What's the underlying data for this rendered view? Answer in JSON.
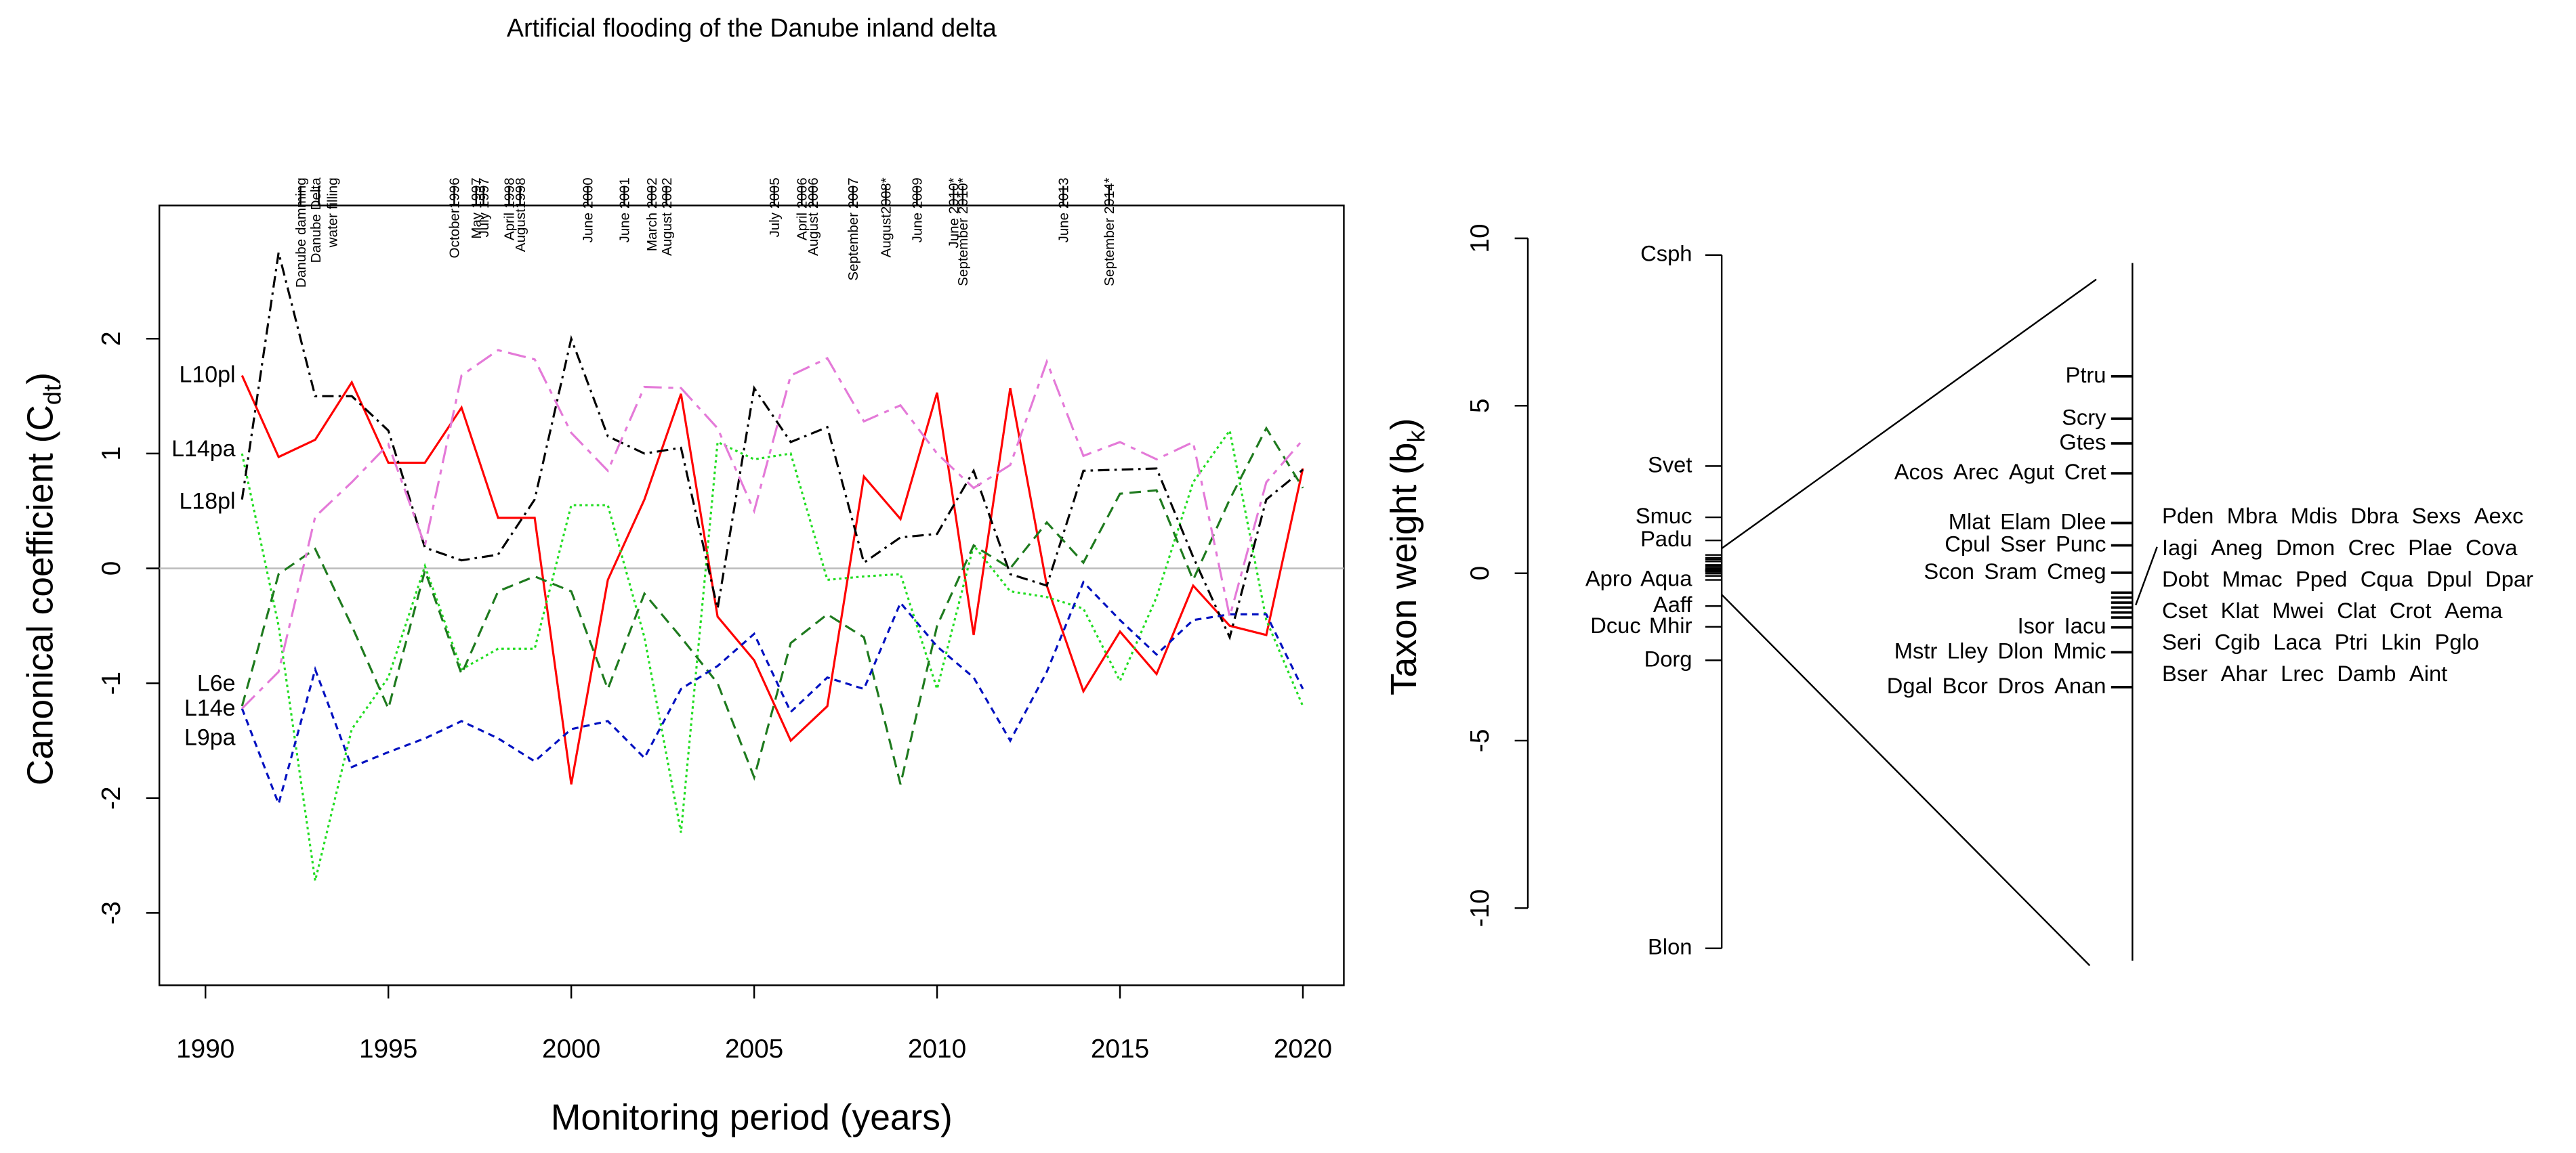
{
  "chart_data": [
    {
      "type": "line",
      "title": "Artificial flooding of the Danube inland delta",
      "x_label": "Monitoring period (years)",
      "y_label": [
        "Canonical coefficient (C",
        "dt",
        ")"
      ],
      "xlim": [
        1988.74,
        2021.12
      ],
      "xticks": [
        1990,
        1995,
        2000,
        2005,
        2010,
        2015,
        2020
      ],
      "ylim": [
        -3.63,
        3.16
      ],
      "yticks": [
        -3,
        -2,
        -1,
        0,
        1,
        2
      ],
      "zero_line": true,
      "events": [
        {
          "label": "Danube damming",
          "x": 1992.6
        },
        {
          "label": [
            "Danube Delta",
            "water filling"
          ],
          "x": 1993.1
        },
        {
          "label": "October1996",
          "x": 1996.8
        },
        {
          "label": "May 1997",
          "x": 1997.4
        },
        {
          "label": "July 1997",
          "x": 1997.6
        },
        {
          "label": "April 1998",
          "x": 1998.3
        },
        {
          "label": "August1998",
          "x": 1998.6
        },
        {
          "label": "June 2000",
          "x": 2000.45
        },
        {
          "label": "June 2001",
          "x": 2001.45
        },
        {
          "label": "March 2002",
          "x": 2002.2
        },
        {
          "label": "August 2002",
          "x": 2002.6
        },
        {
          "label": "July 2005",
          "x": 2005.55
        },
        {
          "label": "April 2006",
          "x": 2006.3
        },
        {
          "label": "August 2006",
          "x": 2006.6
        },
        {
          "label": "September 2007",
          "x": 2007.7
        },
        {
          "label": "August2008*",
          "x": 2008.6
        },
        {
          "label": "June 2009",
          "x": 2009.45
        },
        {
          "label": "June 2010*",
          "x": 2010.45
        },
        {
          "label": "September 2010*",
          "x": 2010.7
        },
        {
          "label": "June 2013",
          "x": 2013.45
        },
        {
          "label": "September 2014*",
          "x": 2014.7
        }
      ],
      "x": [
        1991,
        1992,
        1993,
        1994,
        1995,
        1996,
        1997,
        1998,
        1999,
        2000,
        2001,
        2002,
        2003,
        2004,
        2005,
        2006,
        2007,
        2008,
        2009,
        2010,
        2011,
        2012,
        2013,
        2014,
        2015,
        2016,
        2017,
        2018,
        2019,
        2020
      ],
      "series": [
        {
          "name": "L10pl",
          "color": "#ff0000",
          "label_color": "#e8141c",
          "dash": "solid",
          "values": [
            1.68,
            0.97,
            1.12,
            1.62,
            0.92,
            0.92,
            1.4,
            0.44,
            0.44,
            -1.88,
            -0.1,
            0.6,
            1.52,
            -0.42,
            -0.8,
            -1.5,
            -1.2,
            0.8,
            0.43,
            1.53,
            -0.58,
            1.57,
            -0.15,
            -1.07,
            -0.55,
            -0.92,
            -0.15,
            -0.5,
            -0.58,
            0.87
          ]
        },
        {
          "name": "L14pa",
          "color": "#22dd22",
          "label_color": "#e8b000",
          "dash": "dotted",
          "values": [
            1.0,
            -0.5,
            -2.72,
            -1.4,
            -0.95,
            0.02,
            -0.88,
            -0.7,
            -0.7,
            0.55,
            0.55,
            -0.6,
            -2.3,
            1.1,
            0.95,
            1.0,
            -0.1,
            -0.07,
            -0.05,
            -1.05,
            0.2,
            -0.2,
            -0.25,
            -0.35,
            -0.98,
            -0.25,
            0.75,
            1.2,
            -0.45,
            -1.2
          ]
        },
        {
          "name": "L18pl",
          "color": "#000000",
          "label_color": "#000000",
          "dash": "dashdot",
          "values": [
            0.6,
            2.75,
            1.5,
            1.5,
            1.2,
            0.18,
            0.07,
            0.12,
            0.6,
            2.0,
            1.15,
            1.0,
            1.05,
            -0.35,
            1.57,
            1.1,
            1.23,
            0.05,
            0.27,
            0.3,
            0.85,
            -0.05,
            -0.15,
            0.85,
            0.86,
            0.87,
            0.1,
            -0.6,
            0.6,
            0.86
          ]
        },
        {
          "name": "L6e",
          "color": "#1e7a1e",
          "label_color": "#1a7a1a",
          "dash": "dashed",
          "values": [
            -1.2,
            -0.05,
            0.17,
            -0.5,
            -1.22,
            -0.02,
            -0.92,
            -0.2,
            -0.07,
            -0.2,
            -1.05,
            -0.22,
            -0.6,
            -1.0,
            -1.82,
            -0.65,
            -0.4,
            -0.6,
            -1.88,
            -0.5,
            0.2,
            0.0,
            0.4,
            0.05,
            0.65,
            0.68,
            -0.1,
            0.6,
            1.22,
            0.7
          ]
        },
        {
          "name": "L14e",
          "color": "#0010c0",
          "label_color": "#1f6fb0",
          "dash": "shortdash",
          "values": [
            -1.22,
            -2.05,
            -0.88,
            -1.73,
            -1.6,
            -1.48,
            -1.33,
            -1.48,
            -1.68,
            -1.4,
            -1.33,
            -1.65,
            -1.05,
            -0.85,
            -0.57,
            -1.25,
            -0.95,
            -1.05,
            -0.3,
            -0.68,
            -0.95,
            -1.5,
            -0.9,
            -0.12,
            -0.45,
            -0.75,
            -0.45,
            -0.4,
            -0.4,
            -1.05
          ]
        },
        {
          "name": "L9pa",
          "color": "#e47ad8",
          "label_color": "#e066c8",
          "dash": "longdash",
          "values": [
            -1.22,
            -0.9,
            0.45,
            0.75,
            1.08,
            0.2,
            1.68,
            1.9,
            1.82,
            1.18,
            0.85,
            1.58,
            1.57,
            1.22,
            0.5,
            1.68,
            1.83,
            1.28,
            1.42,
            1.0,
            0.7,
            0.9,
            1.8,
            0.98,
            1.1,
            0.95,
            1.1,
            -0.42,
            0.75,
            1.12
          ]
        }
      ]
    },
    {
      "type": "strip",
      "y_label": [
        "Taxon weight (b",
        "k",
        ")"
      ],
      "ylim": [
        -10,
        10
      ],
      "yticks": [
        -10,
        -5,
        0,
        5,
        10
      ],
      "taxa": [
        {
          "labels": [
            "Csph"
          ],
          "value": 9.5
        },
        {
          "labels": [
            "Svet"
          ],
          "value": 3.2
        },
        {
          "labels": [
            "Smuc"
          ],
          "value": 1.67
        },
        {
          "labels": [
            "Padu"
          ],
          "value": 0.98
        },
        {
          "labels": [
            "Apro",
            "Aqua"
          ],
          "value": -0.2
        },
        {
          "labels": [
            "Aaff"
          ],
          "value": -0.98
        },
        {
          "labels": [
            "Dcuc",
            "Mhir"
          ],
          "value": -1.6
        },
        {
          "labels": [
            "Dorg"
          ],
          "value": -2.6
        },
        {
          "labels": [
            "Blon"
          ],
          "value": -11.2
        }
      ],
      "zoom": {
        "lim": [
          -0.64,
          0.74
        ],
        "groups": [
          {
            "labels": [
              "Ptru"
            ],
            "value": 0.545,
            "side": "left"
          },
          {
            "labels": [
              "Scry"
            ],
            "value": 0.46,
            "side": "left"
          },
          {
            "labels": [
              "Gtes"
            ],
            "value": 0.41,
            "side": "left"
          },
          {
            "labels": [
              "Acos",
              "Arec",
              "Agut",
              "Cret"
            ],
            "value": 0.35,
            "side": "left"
          },
          {
            "labels": [
              "Mlat",
              "Elam",
              "Dlee"
            ],
            "value": 0.25,
            "side": "left"
          },
          {
            "labels": [
              "Cpul",
              "Sser",
              "Punc"
            ],
            "value": 0.205,
            "side": "left"
          },
          {
            "labels": [
              "Scon",
              "Sram",
              "Cmeg"
            ],
            "value": 0.15,
            "side": "left"
          },
          {
            "labels": [
              "Isor",
              "Iacu"
            ],
            "value": 0.04,
            "side": "left"
          },
          {
            "labels": [
              "Mstr",
              "Lley",
              "Dlon",
              "Mmic"
            ],
            "value": -0.01,
            "side": "left"
          },
          {
            "labels": [
              "Dgal",
              "Bcor",
              "Dros",
              "Anan"
            ],
            "value": -0.08,
            "side": "left"
          },
          {
            "labels": [
              "Pden",
              "Mbra",
              "Mdis",
              "Dbra",
              "Sexs",
              "Aexc"
            ],
            "value": 0.11,
            "side": "right"
          },
          {
            "labels": [
              "Iagi",
              "Aneg",
              "Dmon",
              "Crec",
              "Plae",
              "Cova"
            ],
            "value": 0.1,
            "side": "right"
          },
          {
            "labels": [
              "Dobt",
              "Mmac",
              "Pped",
              "Cqua",
              "Dpul",
              "Dpar"
            ],
            "value": 0.09,
            "side": "right"
          },
          {
            "labels": [
              "Cset",
              "Klat",
              "Mwei",
              "Clat",
              "Crot",
              "Aema"
            ],
            "value": 0.08,
            "side": "right"
          },
          {
            "labels": [
              "Seri",
              "Cgib",
              "Laca",
              "Ptri",
              "Lkin",
              "Pglo"
            ],
            "value": 0.07,
            "side": "right"
          },
          {
            "labels": [
              "Bser",
              "Ahar",
              "Lrec",
              "Damb",
              "Aint"
            ],
            "value": 0.06,
            "side": "right"
          }
        ]
      }
    }
  ]
}
